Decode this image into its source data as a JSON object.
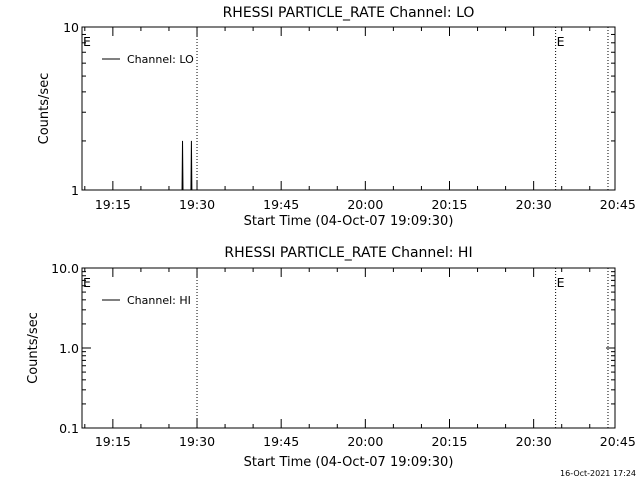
{
  "timestamp": "16-Oct-2021 17:24",
  "chart_data": [
    {
      "type": "line",
      "title": "RHESSI PARTICLE_RATE Channel: LO",
      "xlabel": "Start Time (04-Oct-07 19:09:30)",
      "ylabel": "Counts/sec",
      "yscale": "log",
      "ylim": [
        1,
        10
      ],
      "ytick_labels": [
        "10",
        "1"
      ],
      "xtick_labels": [
        "19:15",
        "19:30",
        "19:45",
        "20:00",
        "20:15",
        "20:30",
        "20:45"
      ],
      "x_unit": "seconds since 19:09:30",
      "xlim": [
        0,
        5700
      ],
      "xticks": [
        330,
        1230,
        2130,
        3030,
        3930,
        4830,
        5730
      ],
      "legend": {
        "label": "Channel: LO",
        "placement": "top-left"
      },
      "event_markers": [
        {
          "x": 1230,
          "label": ""
        },
        {
          "x": 5065,
          "label": "E"
        },
        {
          "x": 5625,
          "label": ""
        }
      ],
      "edge_label": "E",
      "series": [
        {
          "name": "Channel: LO",
          "x": [
            1070,
            1075,
            1080,
            1085,
            1090,
            1095,
            1160,
            1165,
            1170,
            1175,
            1180,
            1185
          ],
          "y": [
            1,
            2,
            1,
            1,
            1,
            1,
            1,
            1,
            2,
            1,
            1,
            1
          ]
        }
      ],
      "grid": false
    },
    {
      "type": "line",
      "title": "RHESSI PARTICLE_RATE Channel: HI",
      "xlabel": "Start Time (04-Oct-07 19:09:30)",
      "ylabel": "Counts/sec",
      "yscale": "log",
      "ylim": [
        0.1,
        10
      ],
      "ytick_labels": [
        "10.0",
        "1.0",
        "0.1"
      ],
      "xtick_labels": [
        "19:15",
        "19:30",
        "19:45",
        "20:00",
        "20:15",
        "20:30",
        "20:45"
      ],
      "x_unit": "seconds since 19:09:30",
      "xlim": [
        0,
        5700
      ],
      "xticks": [
        330,
        1230,
        2130,
        3030,
        3930,
        4830,
        5730
      ],
      "legend": {
        "label": "Channel: HI",
        "placement": "top-left"
      },
      "event_markers": [
        {
          "x": 1230,
          "label": ""
        },
        {
          "x": 5065,
          "label": "E"
        },
        {
          "x": 5625,
          "label": ""
        }
      ],
      "edge_label": "E",
      "series": [
        {
          "name": "Channel: HI",
          "x": [],
          "y": []
        }
      ],
      "grid": false
    }
  ]
}
